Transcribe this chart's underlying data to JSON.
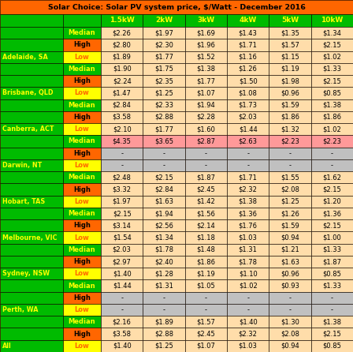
{
  "title": "Solar Choice: Solar PV system price, $/Watt - December 2016",
  "col_headers": [
    "",
    "",
    "1.5kW",
    "2kW",
    "3kW",
    "4kW",
    "5kW",
    "10kW"
  ],
  "rows": [
    {
      "city": "",
      "type": "Median",
      "values": [
        "$2.26",
        "$1.97",
        "$1.69",
        "$1.43",
        "$1.35",
        "$1.34"
      ]
    },
    {
      "city": "",
      "type": "High",
      "values": [
        "$2.80",
        "$2.30",
        "$1.96",
        "$1.71",
        "$1.57",
        "$2.15"
      ]
    },
    {
      "city": "Adelaide, SA",
      "type": "Low",
      "values": [
        "$1.89",
        "$1.77",
        "$1.52",
        "$1.16",
        "$1.15",
        "$1.02"
      ]
    },
    {
      "city": "",
      "type": "Median",
      "values": [
        "$1.90",
        "$1.75",
        "$1.38",
        "$1.26",
        "$1.19",
        "$1.33"
      ]
    },
    {
      "city": "",
      "type": "High",
      "values": [
        "$2.24",
        "$2.35",
        "$1.77",
        "$1.50",
        "$1.98",
        "$2.15"
      ]
    },
    {
      "city": "Brisbane, QLD",
      "type": "Low",
      "values": [
        "$1.47",
        "$1.25",
        "$1.07",
        "$1.08",
        "$0.96",
        "$0.85"
      ]
    },
    {
      "city": "",
      "type": "Median",
      "values": [
        "$2.84",
        "$2.33",
        "$1.94",
        "$1.73",
        "$1.59",
        "$1.38"
      ]
    },
    {
      "city": "",
      "type": "High",
      "values": [
        "$3.58",
        "$2.88",
        "$2.28",
        "$2.03",
        "$1.86",
        "$1.86"
      ]
    },
    {
      "city": "Canberra, ACT",
      "type": "Low",
      "values": [
        "$2.10",
        "$1.77",
        "$1.60",
        "$1.44",
        "$1.32",
        "$1.02"
      ]
    },
    {
      "city": "",
      "type": "Median",
      "values": [
        "$4.35",
        "$3.65",
        "$2.87",
        "$2.63",
        "$2.23",
        "$2.23"
      ],
      "special": "darwin_median"
    },
    {
      "city": "",
      "type": "High",
      "values": [
        "-",
        "-",
        "-",
        "-",
        "-",
        "-"
      ]
    },
    {
      "city": "Darwin, NT",
      "type": "Low",
      "values": [
        "-",
        "-",
        "-",
        "-",
        "-",
        "-"
      ]
    },
    {
      "city": "",
      "type": "Median",
      "values": [
        "$2.48",
        "$2.15",
        "$1.87",
        "$1.71",
        "$1.55",
        "$1.62"
      ]
    },
    {
      "city": "",
      "type": "High",
      "values": [
        "$3.32",
        "$2.84",
        "$2.45",
        "$2.32",
        "$2.08",
        "$2.15"
      ]
    },
    {
      "city": "Hobart, TAS",
      "type": "Low",
      "values": [
        "$1.97",
        "$1.63",
        "$1.42",
        "$1.38",
        "$1.25",
        "$1.20"
      ]
    },
    {
      "city": "",
      "type": "Median",
      "values": [
        "$2.15",
        "$1.94",
        "$1.56",
        "$1.36",
        "$1.26",
        "$1.36"
      ]
    },
    {
      "city": "",
      "type": "High",
      "values": [
        "$3.14",
        "$2.56",
        "$2.14",
        "$1.76",
        "$1.59",
        "$2.15"
      ]
    },
    {
      "city": "Melbourne, VIC",
      "type": "Low",
      "values": [
        "$1.54",
        "$1.34",
        "$1.18",
        "$1.03",
        "$0.94",
        "$1.00"
      ]
    },
    {
      "city": "",
      "type": "Median",
      "values": [
        "$2.03",
        "$1.78",
        "$1.48",
        "$1.31",
        "$1.21",
        "$1.33"
      ]
    },
    {
      "city": "",
      "type": "High",
      "values": [
        "$2.97",
        "$2.40",
        "$1.86",
        "$1.78",
        "$1.63",
        "$1.87"
      ]
    },
    {
      "city": "Sydney, NSW",
      "type": "Low",
      "values": [
        "$1.40",
        "$1.28",
        "$1.19",
        "$1.10",
        "$0.96",
        "$0.85"
      ]
    },
    {
      "city": "",
      "type": "Median",
      "values": [
        "$1.44",
        "$1.31",
        "$1.05",
        "$1.02",
        "$0.93",
        "$1.33"
      ]
    },
    {
      "city": "",
      "type": "High",
      "values": [
        "-",
        "-",
        "-",
        "-",
        "-",
        "-"
      ]
    },
    {
      "city": "Perth, WA",
      "type": "Low",
      "values": [
        "-",
        "-",
        "-",
        "-",
        "-",
        "-"
      ]
    },
    {
      "city": "",
      "type": "Median",
      "values": [
        "$2.16",
        "$1.89",
        "$1.57",
        "$1.40",
        "$1.30",
        "$1.38"
      ]
    },
    {
      "city": "",
      "type": "High",
      "values": [
        "$3.58",
        "$2.88",
        "$2.45",
        "$2.32",
        "$2.08",
        "$2.15"
      ]
    },
    {
      "city": "All",
      "type": "Low",
      "values": [
        "$1.40",
        "$1.25",
        "$1.07",
        "$1.03",
        "$0.94",
        "$0.85"
      ]
    }
  ],
  "title_bg": "#FF6600",
  "title_fg": "#000000",
  "green_bg": "#00BB00",
  "green_fg": "#FFFF00",
  "orange_bg": "#FF6600",
  "orange_fg": "#000000",
  "yellow_bg": "#FFFF00",
  "yellow_fg": "#FF6600",
  "cell_bg": "#FFDDAA",
  "cell_dash_bg": "#C0C0C0",
  "cell_fg": "#000000",
  "darwin_median_cell_bg": "#FF9999"
}
